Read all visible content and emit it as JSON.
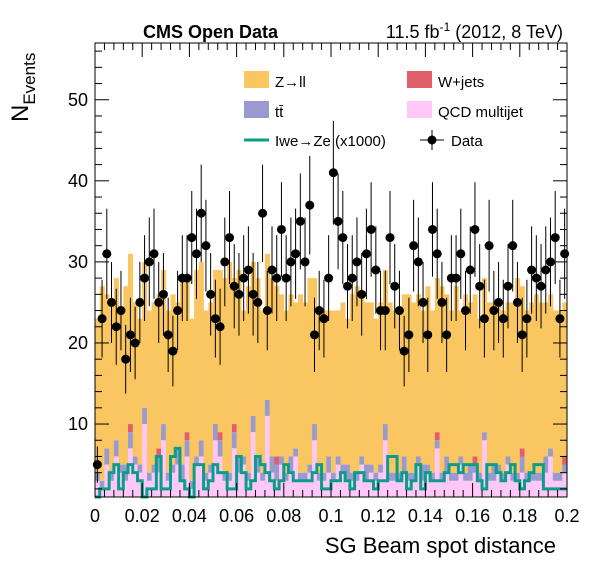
{
  "chart_data": {
    "type": "bar",
    "title_left": "CMS Open Data",
    "title_right_base": "11.5 fb",
    "title_right_sup": "-1",
    "title_right_tail": " (2012, 8 TeV)",
    "ylabel_main": "N",
    "ylabel_sub": "Events",
    "xlabel": "SG Beam spot distance",
    "xlim": [
      0,
      0.2
    ],
    "ylim": [
      1,
      57
    ],
    "xticks": [
      "0",
      "0.02",
      "0.04",
      "0.06",
      "0.08",
      "0.1",
      "0.12",
      "0.14",
      "0.16",
      "0.18",
      "0.2"
    ],
    "yticks": [
      "10",
      "20",
      "30",
      "40",
      "50"
    ],
    "grid": false,
    "legend_position": "top-right",
    "colors": {
      "zll": "#f9c661",
      "ttbar": "#9a9ad0",
      "wjets": "#df5f6a",
      "qcd": "#ffc8f8",
      "signal": "#0a9e8a",
      "data": "#000000"
    },
    "legend": {
      "zll": "Z→ll",
      "wjets": "W+jets",
      "ttbar": "tt̄",
      "qcd": "QCD multijet",
      "signal": "Iwe→Ze (x1000)",
      "data": "Data"
    },
    "n_bins": 100,
    "bin_width": 0.002,
    "series": [
      {
        "name": "QCD multijet",
        "values": [
          3,
          2,
          5,
          3,
          6,
          4,
          3,
          7,
          5,
          4,
          10,
          3,
          4,
          4,
          8,
          3,
          4,
          5,
          3,
          6,
          2,
          5,
          6,
          3,
          4,
          8,
          6,
          3,
          3,
          7,
          4,
          5,
          3,
          9,
          4,
          3,
          11,
          4,
          3,
          5,
          3,
          4,
          6,
          3,
          3,
          4,
          8,
          3,
          3,
          4,
          3,
          5,
          4,
          3,
          3,
          3,
          5,
          3,
          4,
          3,
          4,
          8,
          3,
          3,
          3,
          4,
          3,
          3,
          5,
          3,
          4,
          3,
          7,
          3,
          4,
          3,
          3,
          5,
          3,
          3,
          4,
          3,
          8,
          3,
          3,
          4,
          3,
          5,
          3,
          3,
          4,
          3,
          3,
          3,
          3,
          4,
          6,
          3,
          3,
          4
        ]
      },
      {
        "name": "tt̄",
        "values": [
          1,
          1,
          2,
          1,
          2,
          1,
          2,
          2,
          1,
          1,
          2,
          1,
          1,
          2,
          2,
          1,
          1,
          2,
          2,
          2,
          1,
          1,
          2,
          1,
          1,
          2,
          2,
          1,
          1,
          2,
          2,
          1,
          1,
          2,
          2,
          1,
          2,
          2,
          2,
          1,
          1,
          2,
          1,
          1,
          1,
          1,
          2,
          1,
          1,
          2,
          1,
          1,
          1,
          2,
          1,
          1,
          1,
          2,
          1,
          1,
          1,
          2,
          1,
          1,
          1,
          2,
          1,
          1,
          1,
          2,
          1,
          1,
          1,
          1,
          2,
          1,
          1,
          1,
          1,
          2,
          1,
          1,
          1,
          1,
          2,
          1,
          1,
          1,
          1,
          1,
          2,
          1,
          1,
          1,
          1,
          2,
          1,
          1,
          1,
          1
        ]
      },
      {
        "name": "W+jets",
        "values": [
          0,
          0,
          0,
          0,
          0,
          0,
          0,
          1,
          0,
          0,
          0,
          0,
          0,
          1,
          0,
          0,
          0,
          0,
          0,
          1,
          0,
          0,
          0,
          0,
          0,
          0,
          1,
          0,
          0,
          1,
          0,
          0,
          0,
          0,
          0,
          0,
          0,
          0,
          1,
          0,
          0,
          0,
          0,
          0,
          0,
          0,
          0,
          0,
          0,
          0,
          0,
          0,
          0,
          0,
          0,
          0,
          0,
          0,
          0,
          0,
          0,
          0,
          0,
          0,
          0,
          0,
          0,
          0,
          0,
          0,
          0,
          0,
          1,
          0,
          0,
          0,
          0,
          0,
          0,
          0,
          1,
          0,
          0,
          0,
          0,
          0,
          0,
          0,
          0,
          0,
          1,
          0,
          0,
          0,
          0,
          0,
          0,
          0,
          0,
          1
        ]
      },
      {
        "name": "Z→ll",
        "values": [
          19,
          24,
          19,
          21,
          20,
          19,
          22,
          21,
          19,
          18,
          18,
          20,
          20,
          19,
          19,
          20,
          21,
          18,
          23,
          19,
          20,
          23,
          22,
          20,
          20,
          19,
          20,
          24,
          26,
          18,
          23,
          18,
          23,
          19,
          22,
          20,
          18,
          22,
          21,
          20,
          20,
          20,
          18,
          22,
          21,
          23,
          18,
          20,
          20,
          18,
          20,
          18,
          20,
          18,
          22,
          23,
          20,
          20,
          20,
          19,
          20,
          19,
          21,
          20,
          20,
          20,
          22,
          21,
          20,
          19,
          22,
          20,
          19,
          23,
          20,
          20,
          23,
          18,
          22,
          20,
          20,
          19,
          19,
          21,
          20,
          20,
          20,
          19,
          21,
          24,
          20,
          20,
          21,
          22,
          21,
          19,
          19,
          20,
          20,
          19
        ]
      },
      {
        "name": "Iwe→Ze (x1000)",
        "values": [
          1,
          2,
          2,
          4,
          5,
          2,
          4,
          5,
          4,
          3,
          1,
          2,
          2,
          6,
          2,
          2,
          6,
          7,
          3,
          2,
          1,
          5,
          5,
          2,
          3,
          5,
          4,
          4,
          2,
          2,
          6,
          4,
          2,
          3,
          6,
          5,
          4,
          3,
          2,
          3,
          5,
          4,
          3,
          3,
          3,
          3,
          4,
          5,
          2,
          2,
          3,
          3,
          4,
          3,
          2,
          4,
          4,
          3,
          3,
          2,
          3,
          3,
          6,
          6,
          3,
          4,
          2,
          3,
          5,
          2,
          4,
          3,
          3,
          3,
          4,
          5,
          5,
          4,
          5,
          5,
          5,
          3,
          2,
          5,
          5,
          4,
          3,
          4,
          5,
          3,
          2,
          3,
          4,
          5,
          5,
          2,
          2,
          2,
          2,
          2
        ]
      },
      {
        "name": "Data",
        "values": [
          5,
          23,
          31,
          25,
          22,
          24,
          18,
          21,
          20,
          25,
          28,
          30,
          31,
          25,
          26,
          21,
          19,
          24,
          28,
          28,
          33,
          31,
          36,
          32,
          26,
          23,
          22,
          30,
          33,
          27,
          26,
          28,
          29,
          26,
          25,
          36,
          24,
          29,
          28,
          34,
          28,
          30,
          31,
          35,
          30,
          37,
          21,
          24,
          23,
          28,
          41,
          35,
          33,
          27,
          28,
          30,
          26,
          31,
          34,
          29,
          24,
          24,
          33,
          27,
          24,
          19,
          21,
          32,
          30,
          25,
          21,
          34,
          31,
          25,
          21,
          28,
          28,
          31,
          24,
          29,
          34,
          27,
          23,
          32,
          24,
          25,
          23,
          27,
          32,
          25,
          21,
          23,
          29,
          28,
          27,
          29,
          30,
          33,
          23,
          31
        ]
      }
    ]
  }
}
